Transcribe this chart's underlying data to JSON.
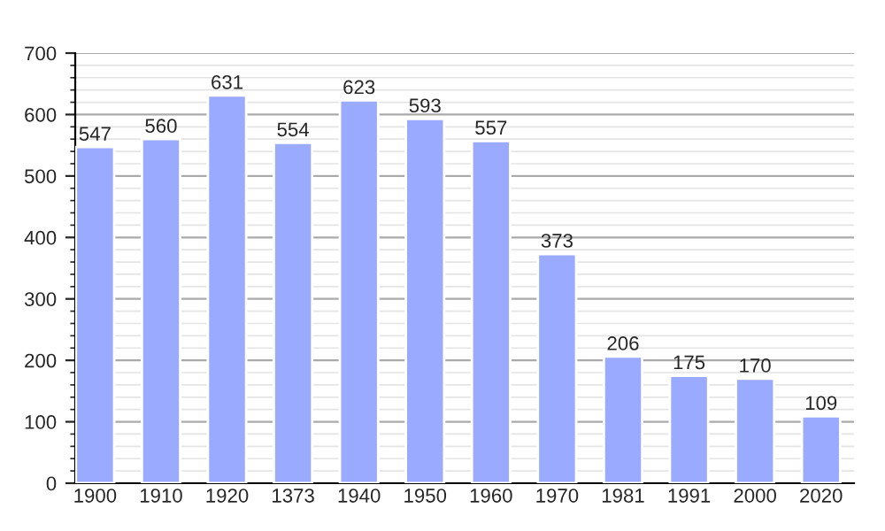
{
  "chart_data": {
    "type": "bar",
    "categories": [
      "1900",
      "1910",
      "1920",
      "1373",
      "1940",
      "1950",
      "1960",
      "1970",
      "1981",
      "1991",
      "2000",
      "2020"
    ],
    "values": [
      547,
      560,
      631,
      554,
      623,
      593,
      557,
      373,
      206,
      175,
      170,
      109
    ],
    "color": "#99aaff",
    "ylim": [
      0,
      700
    ],
    "yticks": [
      0,
      100,
      200,
      300,
      400,
      500,
      600,
      700
    ],
    "grid": "y",
    "data_labels": true
  }
}
